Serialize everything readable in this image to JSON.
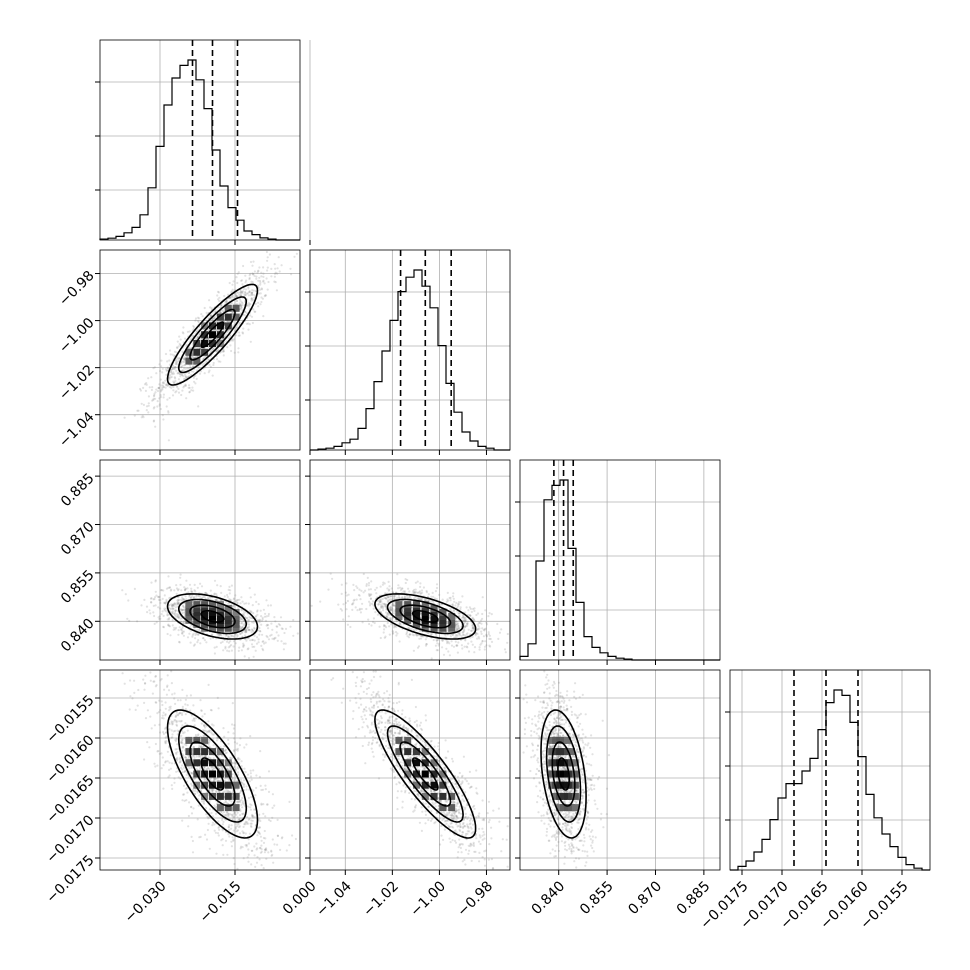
{
  "chart_data": {
    "type": "corner",
    "title": "",
    "grid": true,
    "colors": {
      "ink": "#000000",
      "grid": "#b0b0b0",
      "scatter": "#7a7a7a"
    },
    "parameters": [
      {
        "range": [
          -0.042,
          -0.002
        ],
        "ticks": [
          -0.03,
          -0.015,
          0.0
        ],
        "tick_labels": [
          "−0.030",
          "−0.015",
          "0.000"
        ],
        "median": -0.0195,
        "q16": -0.0235,
        "q84": -0.0145,
        "sigma": 0.0045
      },
      {
        "range": [
          -1.055,
          -0.97
        ],
        "ticks": [
          -1.04,
          -1.02,
          -1.0,
          -0.98
        ],
        "tick_labels": [
          "−1.04",
          "−1.02",
          "−1.00",
          "−0.98"
        ],
        "median": -1.006,
        "q16": -1.0165,
        "q84": -0.995,
        "sigma": 0.0107
      },
      {
        "range": [
          0.828,
          0.89
        ],
        "ticks": [
          0.84,
          0.855,
          0.87,
          0.885
        ],
        "tick_labels": [
          "0.840",
          "0.855",
          "0.870",
          "0.885"
        ],
        "median": 0.8415,
        "q16": 0.8385,
        "q84": 0.8445,
        "sigma": 0.0035
      },
      {
        "range": [
          -0.01765,
          -0.01515
        ],
        "ticks": [
          -0.0175,
          -0.017,
          -0.0165,
          -0.016,
          -0.0155
        ],
        "tick_labels": [
          "−0.0175",
          "−0.0170",
          "−0.0165",
          "−0.0160",
          "−0.0155"
        ],
        "median": -0.01645,
        "q16": -0.01685,
        "q84": -0.01605,
        "sigma": 0.0004
      }
    ],
    "histograms": [
      {
        "bins": 25,
        "counts": [
          0.005,
          0.01,
          0.02,
          0.04,
          0.07,
          0.14,
          0.29,
          0.52,
          0.75,
          0.9,
          0.97,
          1.0,
          0.89,
          0.73,
          0.5,
          0.3,
          0.18,
          0.11,
          0.05,
          0.03,
          0.012,
          0.005,
          0.0,
          0.0,
          0.0
        ]
      },
      {
        "bins": 25,
        "counts": [
          0.0,
          0.005,
          0.01,
          0.02,
          0.04,
          0.06,
          0.12,
          0.23,
          0.38,
          0.55,
          0.72,
          0.88,
          0.96,
          1.0,
          0.91,
          0.79,
          0.58,
          0.37,
          0.21,
          0.1,
          0.05,
          0.02,
          0.01,
          0.0,
          0.0
        ]
      },
      {
        "bins": 25,
        "counts": [
          0.02,
          0.09,
          0.55,
          0.89,
          0.97,
          1.0,
          0.62,
          0.32,
          0.13,
          0.07,
          0.04,
          0.02,
          0.01,
          0.005,
          0.0,
          0.0,
          0.0,
          0.0,
          0.0,
          0.0,
          0.0,
          0.0,
          0.0,
          0.0,
          0.0
        ]
      },
      {
        "bins": 25,
        "counts": [
          0.0,
          0.02,
          0.05,
          0.1,
          0.17,
          0.28,
          0.4,
          0.48,
          0.48,
          0.55,
          0.62,
          0.78,
          0.93,
          1.0,
          0.97,
          0.82,
          0.63,
          0.42,
          0.29,
          0.2,
          0.13,
          0.07,
          0.03,
          0.01,
          0.0
        ]
      }
    ],
    "correlations": {
      "1-0": 0.88,
      "2-0": -0.45,
      "2-1": -0.55,
      "3-0": -0.72,
      "3-1": -0.85,
      "3-2": -0.35
    }
  }
}
